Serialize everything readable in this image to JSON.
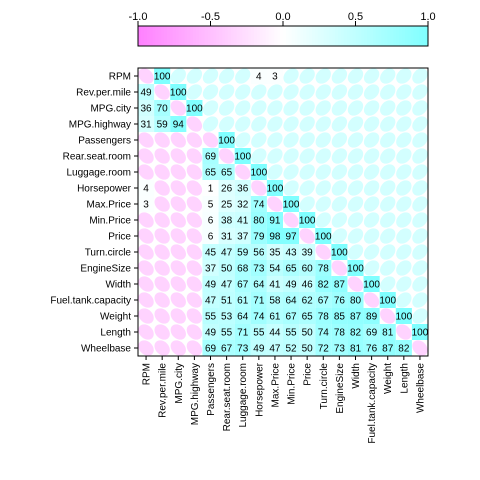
{
  "chart_data": {
    "type": "heatmap",
    "variables": [
      "RPM",
      "Rev.per.mile",
      "MPG.city",
      "MPG.highway",
      "Passengers",
      "Rear.seat.room",
      "Luggage.room",
      "Horsepower",
      "Max.Price",
      "Min.Price",
      "Price",
      "Turn.circle",
      "EngineSize",
      "Width",
      "Fuel.tank.capacity",
      "Weight",
      "Length",
      "Wheelbase"
    ],
    "upper_labels": [
      [
        "",
        "",
        "",
        "",
        "",
        "",
        "",
        "",
        "",
        "",
        "",
        "",
        "",
        "",
        "",
        "",
        "",
        ""
      ],
      [
        "49",
        "",
        "",
        "",
        "",
        "",
        "",
        "",
        "",
        "",
        "",
        "",
        "",
        "",
        "",
        "",
        "",
        ""
      ],
      [
        "36",
        "70",
        "",
        "",
        "",
        "",
        "",
        "",
        "",
        "",
        "",
        "",
        "",
        "",
        "",
        "",
        "",
        ""
      ],
      [
        "31",
        "59",
        "94",
        "",
        "",
        "",
        "",
        "",
        "",
        "",
        "",
        "",
        "",
        "",
        "",
        "",
        "",
        ""
      ],
      [
        "",
        "",
        "",
        "",
        "",
        "",
        "",
        "",
        "",
        "",
        "",
        "",
        "",
        "",
        "",
        "",
        "",
        ""
      ],
      [
        "",
        "",
        "",
        "",
        "69",
        "",
        "",
        "",
        "",
        "",
        "",
        "",
        "",
        "",
        "",
        "",
        "",
        ""
      ],
      [
        "",
        "",
        "",
        "",
        "65",
        "65",
        "",
        "",
        "",
        "",
        "",
        "",
        "",
        "",
        "",
        "",
        "",
        ""
      ],
      [
        "",
        "",
        "",
        "",
        "",
        "",
        "36",
        "",
        "",
        "",
        "",
        "",
        "",
        "",
        "",
        "",
        "",
        ""
      ],
      [
        "",
        "",
        "",
        "",
        "5",
        "25",
        "32",
        "74",
        "",
        "",
        "",
        "",
        "",
        "",
        "",
        "",
        "",
        ""
      ],
      [
        "",
        "",
        "",
        "",
        "6",
        "38",
        "41",
        "80",
        "91",
        "",
        "",
        "",
        "",
        "",
        "",
        "",
        "",
        ""
      ],
      [
        "",
        "",
        "",
        "",
        "6",
        "31",
        "37",
        "79",
        "98",
        "97",
        "",
        "",
        "",
        "",
        "",
        "",
        "",
        ""
      ],
      [
        "",
        "",
        "",
        "",
        "45",
        "47",
        "59",
        "56",
        "35",
        "43",
        "39",
        "",
        "",
        "",
        "",
        "",
        "",
        ""
      ],
      [
        "",
        "",
        "",
        "",
        "37",
        "50",
        "68",
        "73",
        "54",
        "65",
        "60",
        "78",
        "",
        "",
        "",
        "",
        "",
        ""
      ],
      [
        "",
        "",
        "",
        "",
        "49",
        "47",
        "67",
        "64",
        "41",
        "49",
        "46",
        "82",
        "87",
        "",
        "",
        "",
        "",
        ""
      ],
      [
        "",
        "",
        "",
        "",
        "47",
        "51",
        "61",
        "71",
        "58",
        "64",
        "62",
        "67",
        "76",
        "80",
        "",
        "",
        "",
        ""
      ],
      [
        "",
        "",
        "",
        "",
        "55",
        "53",
        "64",
        "74",
        "61",
        "67",
        "65",
        "78",
        "85",
        "87",
        "89",
        "",
        "",
        ""
      ],
      [
        "",
        "",
        "",
        "",
        "49",
        "55",
        "71",
        "55",
        "44",
        "55",
        "50",
        "74",
        "78",
        "82",
        "69",
        "81",
        "",
        ""
      ],
      [
        "",
        "",
        "",
        "",
        "69",
        "67",
        "73",
        "49",
        "47",
        "52",
        "50",
        "72",
        "73",
        "81",
        "76",
        "87",
        "82",
        ""
      ]
    ],
    "lower_labels": [
      [
        "",
        "100",
        "",
        "",
        "",
        "",
        "",
        "",
        "",
        "",
        "",
        "",
        "",
        "",
        "",
        "",
        "",
        ""
      ],
      [
        "",
        "",
        "100",
        "",
        "",
        "",
        "",
        "",
        "",
        "",
        "",
        "",
        "",
        "",
        "",
        "",
        "",
        ""
      ],
      [
        "",
        "",
        "",
        "100",
        "",
        "",
        "",
        "",
        "",
        "",
        "",
        "",
        "",
        "",
        "",
        "",
        "",
        ""
      ],
      [
        "",
        "",
        "",
        "",
        "",
        "",
        "",
        "",
        "",
        "",
        "",
        "",
        "",
        "",
        "",
        "",
        "",
        ""
      ],
      [
        "",
        "",
        "",
        "",
        "",
        "100",
        "",
        "",
        "",
        "",
        "",
        "",
        "",
        "",
        "",
        "",
        "",
        ""
      ],
      [
        "",
        "",
        "",
        "",
        "",
        "",
        "100",
        "",
        "",
        "",
        "",
        "",
        "",
        "",
        "",
        "",
        "",
        ""
      ],
      [
        "",
        "",
        "",
        "",
        "",
        "",
        "",
        "100",
        "",
        "",
        "",
        "",
        "",
        "",
        "",
        "",
        "",
        ""
      ],
      [
        "",
        "",
        "",
        "",
        "",
        "",
        "",
        "",
        "100",
        "",
        "",
        "",
        "",
        "",
        "",
        "",
        "",
        ""
      ],
      [
        "",
        "",
        "",
        "",
        "",
        "",
        "",
        "",
        "",
        "100",
        "",
        "",
        "",
        "",
        "",
        "",
        "",
        ""
      ],
      [
        "",
        "",
        "",
        "",
        "",
        "",
        "",
        "",
        "",
        "",
        "100",
        "",
        "",
        "",
        "",
        "",
        "",
        ""
      ],
      [
        "",
        "",
        "",
        "",
        "",
        "",
        "",
        "",
        "",
        "",
        "",
        "100",
        "",
        "",
        "",
        "",
        "",
        ""
      ],
      [
        "",
        "",
        "",
        "",
        "",
        "",
        "",
        "",
        "",
        "",
        "",
        "",
        "100",
        "",
        "",
        "",
        "",
        ""
      ],
      [
        "",
        "",
        "",
        "",
        "",
        "",
        "",
        "",
        "",
        "",
        "",
        "",
        "",
        "100",
        "",
        "",
        "",
        ""
      ],
      [
        "",
        "",
        "",
        "",
        "",
        "",
        "",
        "",
        "",
        "",
        "",
        "",
        "",
        "",
        "100",
        "",
        "",
        ""
      ],
      [
        "",
        "",
        "",
        "",
        "",
        "",
        "",
        "",
        "",
        "",
        "",
        "",
        "",
        "",
        "",
        "100",
        "",
        ""
      ],
      [
        "",
        "",
        "",
        "",
        "",
        "",
        "",
        "",
        "",
        "",
        "",
        "",
        "",
        "",
        "",
        "",
        "100",
        ""
      ],
      [
        "",
        "",
        "",
        "",
        "",
        "",
        "",
        "",
        "",
        "",
        "",
        "",
        "",
        "",
        "",
        "",
        "",
        "100"
      ],
      [
        "",
        "",
        "",
        "",
        "",
        "",
        "",
        "",
        "",
        "",
        "",
        "",
        "",
        "",
        "",
        "",
        "",
        ""
      ]
    ],
    "extra_labels": [
      {
        "row": "Max.Price",
        "col": "RPM",
        "text": "3"
      },
      {
        "row": "Horsepower",
        "col": "RPM",
        "text": "4"
      },
      {
        "row": "RPM",
        "col": "Horsepower",
        "text": "4"
      },
      {
        "row": "RPM",
        "col": "Max.Price",
        "text": "3"
      },
      {
        "row": "Horsepower",
        "col": "Passengers",
        "text": "1"
      },
      {
        "row": "Horsepower",
        "col": "Rear.seat.room",
        "text": "26"
      },
      {
        "row": "Turn.circle",
        "col": "Max.Price",
        "text": "35"
      }
    ],
    "colorkey": {
      "min": -1.0,
      "max": 1.0,
      "ticks": [
        "-1.0",
        "-0.5",
        "0.0",
        "0.5",
        "1.0"
      ],
      "negative_color": "#ff80ff",
      "positive_color": "#80ffff"
    }
  }
}
